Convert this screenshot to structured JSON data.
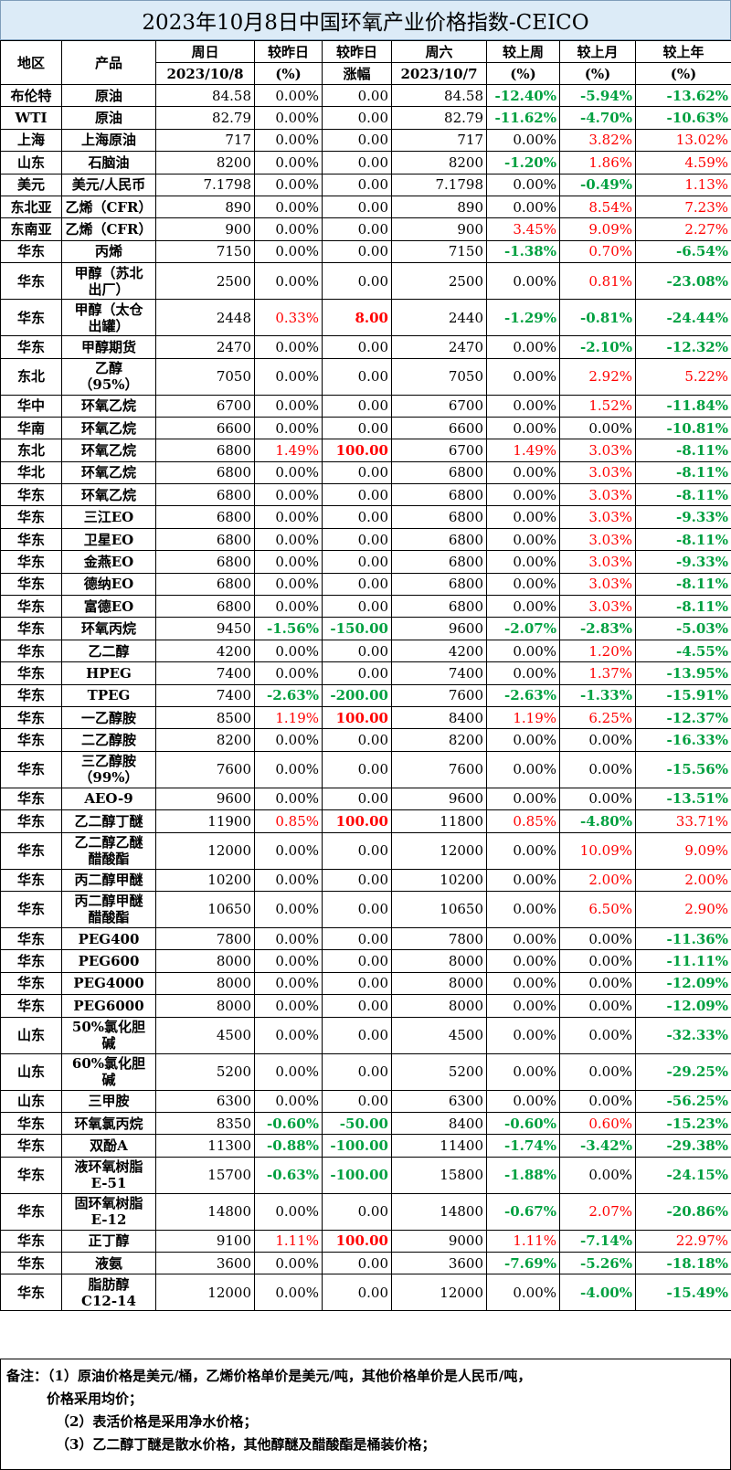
{
  "title": "2023年10月8日中国环氧产业价格指数-CEICO",
  "headers": {
    "region": "地区",
    "product": "产品",
    "sunday": "周日",
    "sunday_date": "2023/10/8",
    "vs_yesterday": "较昨日",
    "vs_yesterday_unit": "(%)",
    "vs_yesterday2": "较昨日",
    "vs_yesterday2_unit": "涨幅",
    "saturday": "周六",
    "saturday_date": "2023/10/7",
    "vs_week": "较上周",
    "vs_week_unit": "(%)",
    "vs_month": "较上月",
    "vs_month_unit": "(%)",
    "vs_year": "较上年",
    "vs_year_unit": "(%)"
  },
  "rows": [
    {
      "region": "布伦特",
      "product": "原油",
      "today": "84.58",
      "d_pct": "0.00%",
      "d_abs": "0.00",
      "prev": "84.58",
      "w": "-12.40%",
      "m": "-5.94%",
      "y": "-13.62%"
    },
    {
      "region": "WTI",
      "product": "原油",
      "today": "82.79",
      "d_pct": "0.00%",
      "d_abs": "0.00",
      "prev": "82.79",
      "w": "-11.62%",
      "m": "-4.70%",
      "y": "-10.63%"
    },
    {
      "region": "上海",
      "product": "上海原油",
      "today": "717",
      "d_pct": "0.00%",
      "d_abs": "0.00",
      "prev": "717",
      "w": "0.00%",
      "m": "3.82%",
      "y": "13.02%"
    },
    {
      "region": "山东",
      "product": "石脑油",
      "today": "8200",
      "d_pct": "0.00%",
      "d_abs": "0.00",
      "prev": "8200",
      "w": "-1.20%",
      "m": "1.86%",
      "y": "4.59%"
    },
    {
      "region": "美元",
      "product": "美元/人民币",
      "today": "7.1798",
      "d_pct": "0.00%",
      "d_abs": "0.00",
      "prev": "7.1798",
      "w": "0.00%",
      "m": "-0.49%",
      "y": "1.13%"
    },
    {
      "region": "东北亚",
      "product": "乙烯（CFR）",
      "today": "890",
      "d_pct": "0.00%",
      "d_abs": "0.00",
      "prev": "890",
      "w": "0.00%",
      "m": "8.54%",
      "y": "7.23%"
    },
    {
      "region": "东南亚",
      "product": "乙烯（CFR）",
      "today": "900",
      "d_pct": "0.00%",
      "d_abs": "0.00",
      "prev": "900",
      "w": "3.45%",
      "m": "9.09%",
      "y": "2.27%"
    },
    {
      "region": "华东",
      "product": "丙烯",
      "today": "7150",
      "d_pct": "0.00%",
      "d_abs": "0.00",
      "prev": "7150",
      "w": "-1.38%",
      "m": "0.70%",
      "y": "-6.54%"
    },
    {
      "region": "华东",
      "product": "甲醇（苏北出厂）",
      "today": "2500",
      "d_pct": "0.00%",
      "d_abs": "0.00",
      "prev": "2500",
      "w": "0.00%",
      "m": "0.81%",
      "y": "-23.08%"
    },
    {
      "region": "华东",
      "product": "甲醇（太仓出罐）",
      "today": "2448",
      "d_pct": "0.33%",
      "d_abs": "8.00",
      "prev": "2440",
      "w": "-1.29%",
      "m": "-0.81%",
      "y": "-24.44%"
    },
    {
      "region": "华东",
      "product": "甲醇期货",
      "today": "2470",
      "d_pct": "0.00%",
      "d_abs": "0.00",
      "prev": "2470",
      "w": "0.00%",
      "m": "-2.10%",
      "y": "-12.32%"
    },
    {
      "region": "东北",
      "product": "乙醇（95%）",
      "today": "7050",
      "d_pct": "0.00%",
      "d_abs": "0.00",
      "prev": "7050",
      "w": "0.00%",
      "m": "2.92%",
      "y": "5.22%"
    },
    {
      "region": "华中",
      "product": "环氧乙烷",
      "today": "6700",
      "d_pct": "0.00%",
      "d_abs": "0.00",
      "prev": "6700",
      "w": "0.00%",
      "m": "1.52%",
      "y": "-11.84%"
    },
    {
      "region": "华南",
      "product": "环氧乙烷",
      "today": "6600",
      "d_pct": "0.00%",
      "d_abs": "0.00",
      "prev": "6600",
      "w": "0.00%",
      "m": "0.00%",
      "y": "-10.81%"
    },
    {
      "region": "东北",
      "product": "环氧乙烷",
      "today": "6800",
      "d_pct": "1.49%",
      "d_abs": "100.00",
      "prev": "6700",
      "w": "1.49%",
      "m": "3.03%",
      "y": "-8.11%"
    },
    {
      "region": "华北",
      "product": "环氧乙烷",
      "today": "6800",
      "d_pct": "0.00%",
      "d_abs": "0.00",
      "prev": "6800",
      "w": "0.00%",
      "m": "3.03%",
      "y": "-8.11%"
    },
    {
      "region": "华东",
      "product": "环氧乙烷",
      "today": "6800",
      "d_pct": "0.00%",
      "d_abs": "0.00",
      "prev": "6800",
      "w": "0.00%",
      "m": "3.03%",
      "y": "-8.11%"
    },
    {
      "region": "华东",
      "product": "三江EO",
      "today": "6800",
      "d_pct": "0.00%",
      "d_abs": "0.00",
      "prev": "6800",
      "w": "0.00%",
      "m": "3.03%",
      "y": "-9.33%"
    },
    {
      "region": "华东",
      "product": "卫星EO",
      "today": "6800",
      "d_pct": "0.00%",
      "d_abs": "0.00",
      "prev": "6800",
      "w": "0.00%",
      "m": "3.03%",
      "y": "-8.11%"
    },
    {
      "region": "华东",
      "product": "金燕EO",
      "today": "6800",
      "d_pct": "0.00%",
      "d_abs": "0.00",
      "prev": "6800",
      "w": "0.00%",
      "m": "3.03%",
      "y": "-9.33%"
    },
    {
      "region": "华东",
      "product": "德纳EO",
      "today": "6800",
      "d_pct": "0.00%",
      "d_abs": "0.00",
      "prev": "6800",
      "w": "0.00%",
      "m": "3.03%",
      "y": "-8.11%"
    },
    {
      "region": "华东",
      "product": "富德EO",
      "today": "6800",
      "d_pct": "0.00%",
      "d_abs": "0.00",
      "prev": "6800",
      "w": "0.00%",
      "m": "3.03%",
      "y": "-8.11%"
    },
    {
      "region": "华东",
      "product": "环氧丙烷",
      "today": "9450",
      "d_pct": "-1.56%",
      "d_abs": "-150.00",
      "prev": "9600",
      "w": "-2.07%",
      "m": "-2.83%",
      "y": "-5.03%"
    },
    {
      "region": "华东",
      "product": "乙二醇",
      "today": "4200",
      "d_pct": "0.00%",
      "d_abs": "0.00",
      "prev": "4200",
      "w": "0.00%",
      "m": "1.20%",
      "y": "-4.55%"
    },
    {
      "region": "华东",
      "product": "HPEG",
      "today": "7400",
      "d_pct": "0.00%",
      "d_abs": "0.00",
      "prev": "7400",
      "w": "0.00%",
      "m": "1.37%",
      "y": "-13.95%"
    },
    {
      "region": "华东",
      "product": "TPEG",
      "today": "7400",
      "d_pct": "-2.63%",
      "d_abs": "-200.00",
      "prev": "7600",
      "w": "-2.63%",
      "m": "-1.33%",
      "y": "-15.91%"
    },
    {
      "region": "华东",
      "product": "一乙醇胺",
      "today": "8500",
      "d_pct": "1.19%",
      "d_abs": "100.00",
      "prev": "8400",
      "w": "1.19%",
      "m": "6.25%",
      "y": "-12.37%"
    },
    {
      "region": "华东",
      "product": "二乙醇胺",
      "today": "8200",
      "d_pct": "0.00%",
      "d_abs": "0.00",
      "prev": "8200",
      "w": "0.00%",
      "m": "0.00%",
      "y": "-16.33%"
    },
    {
      "region": "华东",
      "product": "三乙醇胺（99%）",
      "today": "7600",
      "d_pct": "0.00%",
      "d_abs": "0.00",
      "prev": "7600",
      "w": "0.00%",
      "m": "0.00%",
      "y": "-15.56%"
    },
    {
      "region": "华东",
      "product": "AEO-9",
      "today": "9600",
      "d_pct": "0.00%",
      "d_abs": "0.00",
      "prev": "9600",
      "w": "0.00%",
      "m": "0.00%",
      "y": "-13.51%"
    },
    {
      "region": "华东",
      "product": "乙二醇丁醚",
      "today": "11900",
      "d_pct": "0.85%",
      "d_abs": "100.00",
      "prev": "11800",
      "w": "0.85%",
      "m": "-4.80%",
      "y": "33.71%"
    },
    {
      "region": "华东",
      "product": "乙二醇乙醚醋酸酯",
      "today": "12000",
      "d_pct": "0.00%",
      "d_abs": "0.00",
      "prev": "12000",
      "w": "0.00%",
      "m": "10.09%",
      "y": "9.09%"
    },
    {
      "region": "华东",
      "product": "丙二醇甲醚",
      "today": "10200",
      "d_pct": "0.00%",
      "d_abs": "0.00",
      "prev": "10200",
      "w": "0.00%",
      "m": "2.00%",
      "y": "2.00%"
    },
    {
      "region": "华东",
      "product": "丙二醇甲醚醋酸酯",
      "today": "10650",
      "d_pct": "0.00%",
      "d_abs": "0.00",
      "prev": "10650",
      "w": "0.00%",
      "m": "6.50%",
      "y": "2.90%"
    },
    {
      "region": "华东",
      "product": "PEG400",
      "today": "7800",
      "d_pct": "0.00%",
      "d_abs": "0.00",
      "prev": "7800",
      "w": "0.00%",
      "m": "0.00%",
      "y": "-11.36%"
    },
    {
      "region": "华东",
      "product": "PEG600",
      "today": "8000",
      "d_pct": "0.00%",
      "d_abs": "0.00",
      "prev": "8000",
      "w": "0.00%",
      "m": "0.00%",
      "y": "-11.11%"
    },
    {
      "region": "华东",
      "product": "PEG4000",
      "today": "8000",
      "d_pct": "0.00%",
      "d_abs": "0.00",
      "prev": "8000",
      "w": "0.00%",
      "m": "0.00%",
      "y": "-12.09%"
    },
    {
      "region": "华东",
      "product": "PEG6000",
      "today": "8000",
      "d_pct": "0.00%",
      "d_abs": "0.00",
      "prev": "8000",
      "w": "0.00%",
      "m": "0.00%",
      "y": "-12.09%"
    },
    {
      "region": "山东",
      "product": "50%氯化胆碱",
      "today": "4500",
      "d_pct": "0.00%",
      "d_abs": "0.00",
      "prev": "4500",
      "w": "0.00%",
      "m": "0.00%",
      "y": "-32.33%"
    },
    {
      "region": "山东",
      "product": "60%氯化胆碱",
      "today": "5200",
      "d_pct": "0.00%",
      "d_abs": "0.00",
      "prev": "5200",
      "w": "0.00%",
      "m": "0.00%",
      "y": "-29.25%"
    },
    {
      "region": "山东",
      "product": "三甲胺",
      "today": "6300",
      "d_pct": "0.00%",
      "d_abs": "0.00",
      "prev": "6300",
      "w": "0.00%",
      "m": "0.00%",
      "y": "-56.25%"
    },
    {
      "region": "华东",
      "product": "环氧氯丙烷",
      "today": "8350",
      "d_pct": "-0.60%",
      "d_abs": "-50.00",
      "prev": "8400",
      "w": "-0.60%",
      "m": "0.60%",
      "y": "-15.23%"
    },
    {
      "region": "华东",
      "product": "双酚A",
      "today": "11300",
      "d_pct": "-0.88%",
      "d_abs": "-100.00",
      "prev": "11400",
      "w": "-1.74%",
      "m": "-3.42%",
      "y": "-29.38%"
    },
    {
      "region": "华东",
      "product": "液环氧树脂E-51",
      "today": "15700",
      "d_pct": "-0.63%",
      "d_abs": "-100.00",
      "prev": "15800",
      "w": "-1.88%",
      "m": "0.00%",
      "y": "-24.15%"
    },
    {
      "region": "华东",
      "product": "固环氧树脂E-12",
      "today": "14800",
      "d_pct": "0.00%",
      "d_abs": "0.00",
      "prev": "14800",
      "w": "-0.67%",
      "m": "2.07%",
      "y": "-20.86%"
    },
    {
      "region": "华东",
      "product": "正丁醇",
      "today": "9100",
      "d_pct": "1.11%",
      "d_abs": "100.00",
      "prev": "9000",
      "w": "1.11%",
      "m": "-7.14%",
      "y": "22.97%"
    },
    {
      "region": "华东",
      "product": "液氨",
      "today": "3600",
      "d_pct": "0.00%",
      "d_abs": "0.00",
      "prev": "3600",
      "w": "-7.69%",
      "m": "-5.26%",
      "y": "-18.18%"
    },
    {
      "region": "华东",
      "product": "脂肪醇C12-14",
      "today": "12000",
      "d_pct": "0.00%",
      "d_abs": "0.00",
      "prev": "12000",
      "w": "0.00%",
      "m": "-4.00%",
      "y": "-15.49%"
    }
  ],
  "notes": {
    "line1": "备注：（1）原油价格是美元/桶，乙烯价格单价是美元/吨，其他价格单价是人民币/吨，",
    "line2": "价格采用均价；",
    "line3": "（2）表活价格是采用净水价格；",
    "line4": "（3）乙二醇丁醚是散水价格，其他醇醚及醋酸酯是桶装价格；"
  },
  "colors": {
    "up": "#ff0000",
    "down": "#00a040",
    "title_bg": "#dcebf7"
  }
}
